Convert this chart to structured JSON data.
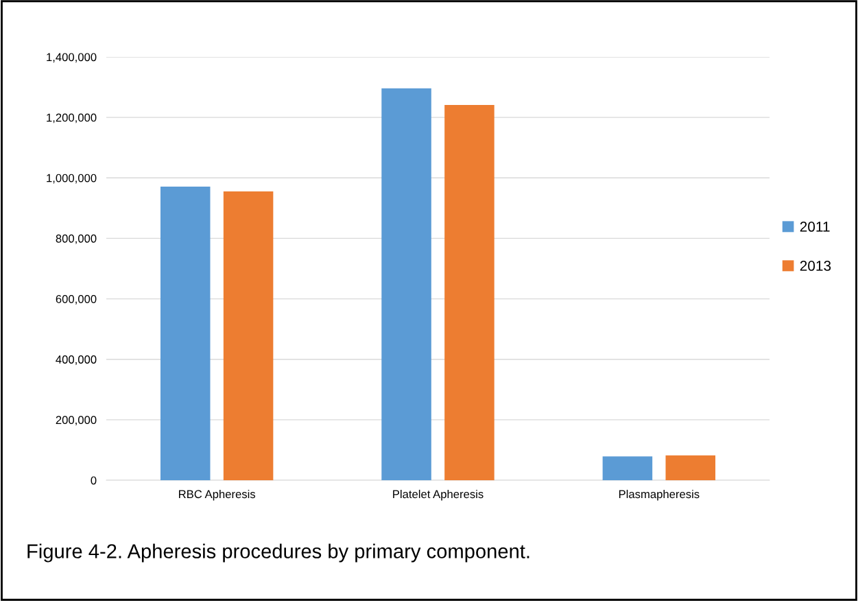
{
  "chart_data": {
    "type": "bar",
    "categories": [
      "RBC Apheresis",
      "Platelet Apheresis",
      "Plasmapheresis"
    ],
    "series": [
      {
        "name": "2011",
        "color": "#5b9bd5",
        "values": [
          971000,
          1296000,
          79000
        ]
      },
      {
        "name": "2013",
        "color": "#ed7d31",
        "values": [
          955000,
          1241000,
          82000
        ]
      }
    ],
    "ylim": [
      0,
      1400000
    ],
    "yticks": [
      {
        "value": 0,
        "label": "0"
      },
      {
        "value": 200000,
        "label": "200,000"
      },
      {
        "value": 400000,
        "label": "400,000"
      },
      {
        "value": 600000,
        "label": "600,000"
      },
      {
        "value": 800000,
        "label": "800,000"
      },
      {
        "value": 1000000,
        "label": "1,000,000"
      },
      {
        "value": 1200000,
        "label": "1,200,000"
      },
      {
        "value": 1400000,
        "label": "1,400,000"
      }
    ],
    "grid": "y",
    "legend": "right",
    "annotations": [
      "Figure 4-2. Apheresis procedures by primary component."
    ]
  }
}
